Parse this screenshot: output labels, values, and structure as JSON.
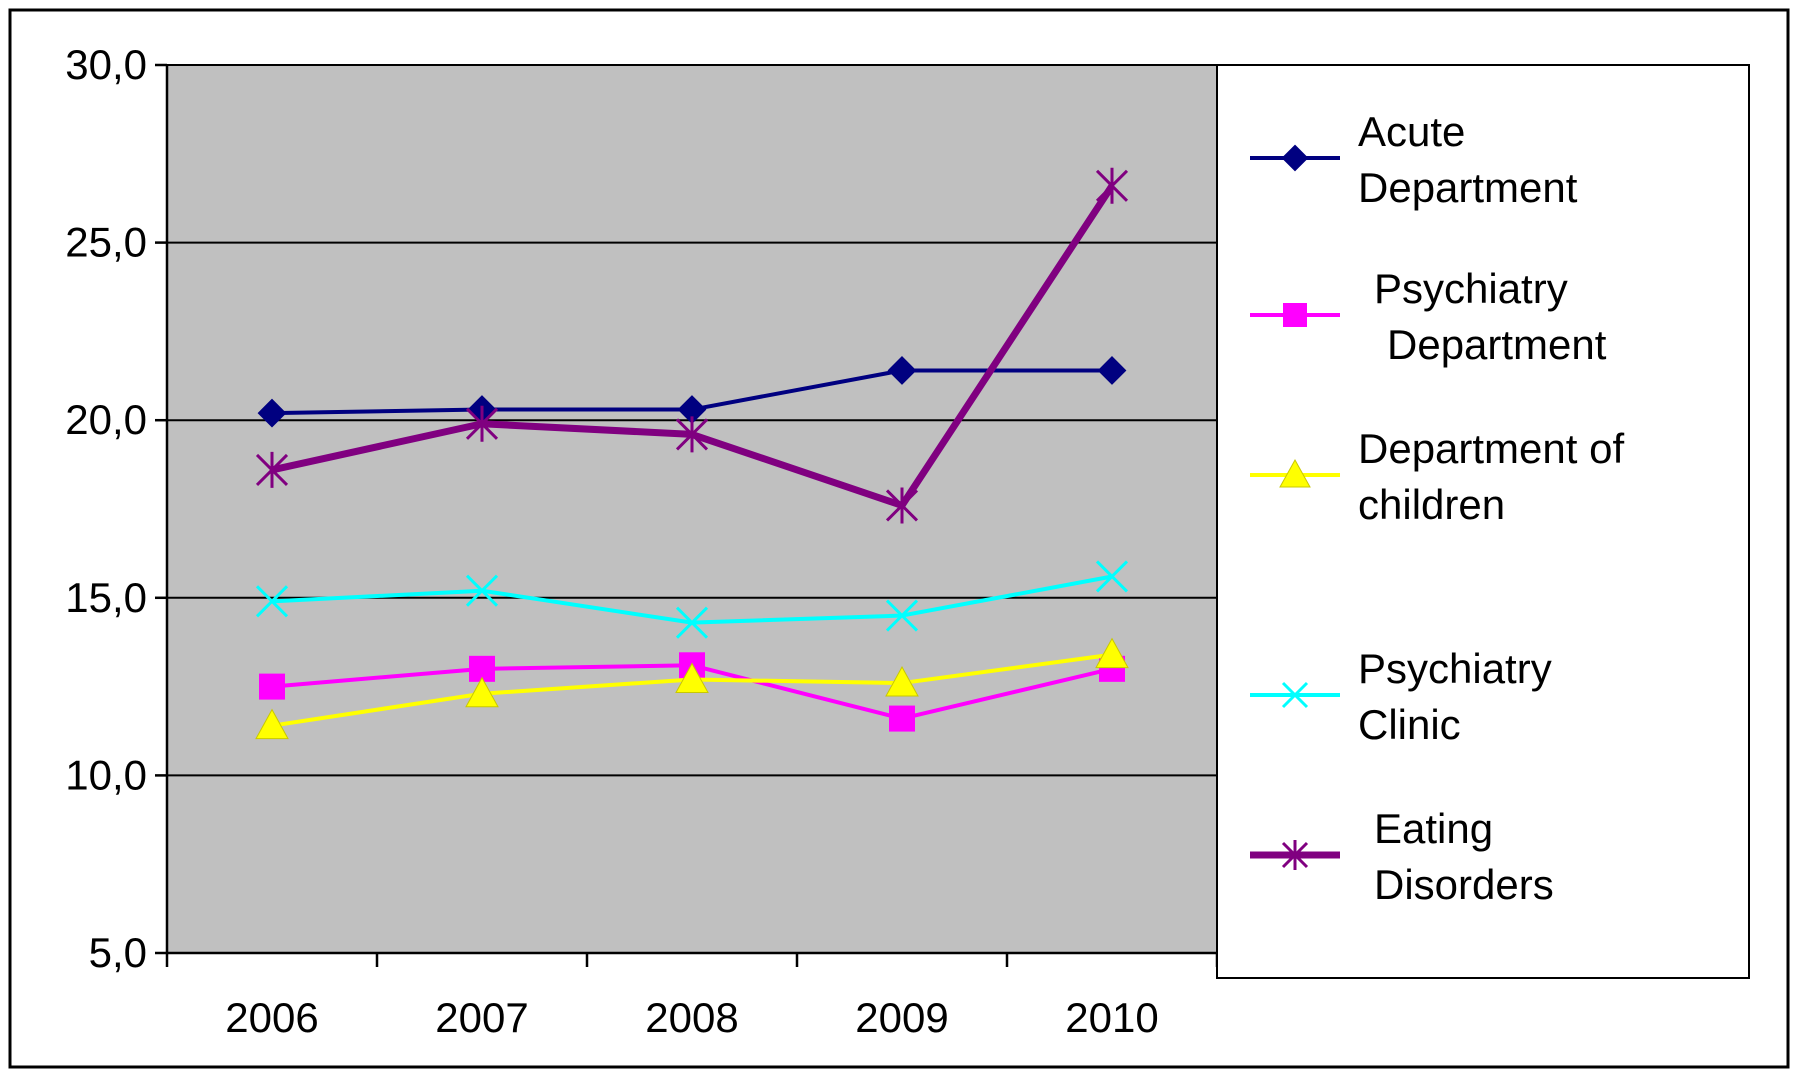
{
  "chart_data": {
    "type": "line",
    "title": "",
    "xlabel": "",
    "ylabel": "",
    "categories": [
      "2006",
      "2007",
      "2008",
      "2009",
      "2010"
    ],
    "y_tick_labels": [
      "5,0",
      "10,0",
      "15,0",
      "20,0",
      "25,0",
      "30,0"
    ],
    "y_ticks": [
      5,
      10,
      15,
      20,
      25,
      30
    ],
    "ylim": [
      5,
      30
    ],
    "grid": true,
    "plot_background": "#c0c0c0",
    "legend_position": "right",
    "series": [
      {
        "name": "Acute Department",
        "legend_lines": [
          "Acute",
          "Department"
        ],
        "values": [
          20.2,
          20.3,
          20.3,
          21.4,
          21.4
        ],
        "color": "#000080",
        "marker": "diamond",
        "thick": false
      },
      {
        "name": "Psychiatry Department",
        "legend_lines": [
          "Psychiatry",
          "Department"
        ],
        "values": [
          12.5,
          13.0,
          13.1,
          11.6,
          13.0
        ],
        "color": "#ff00ff",
        "marker": "square",
        "thick": false
      },
      {
        "name": "Department of children",
        "legend_lines": [
          "Department of",
          "children"
        ],
        "values": [
          11.4,
          12.3,
          12.7,
          12.6,
          13.4
        ],
        "color": "#ffff00",
        "marker": "triangle",
        "thick": false
      },
      {
        "name": "Psychiatry Clinic",
        "legend_lines": [
          "Psychiatry",
          "Clinic"
        ],
        "values": [
          14.9,
          15.2,
          14.3,
          14.5,
          15.6
        ],
        "color": "#00ffff",
        "marker": "x",
        "thick": false
      },
      {
        "name": "Eating Disorders",
        "legend_lines": [
          "Eating",
          "Disorders"
        ],
        "values": [
          18.6,
          19.9,
          19.6,
          17.6,
          26.6
        ],
        "color": "#800080",
        "marker": "asterisk",
        "thick": true
      }
    ]
  }
}
